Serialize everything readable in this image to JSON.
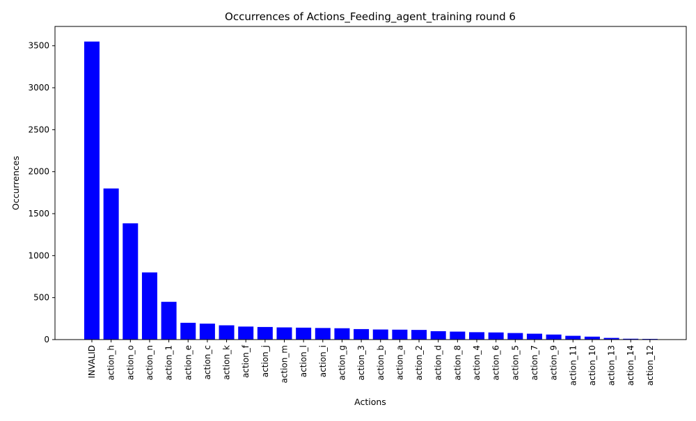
{
  "chart_data": {
    "type": "bar",
    "title": "Occurrences of Actions_Feeding_agent_training round 6",
    "xlabel": "Actions",
    "ylabel": "Occurrences",
    "ylim": [
      0,
      3730
    ],
    "yticks": [
      0,
      500,
      1000,
      1500,
      2000,
      2500,
      3000,
      3500
    ],
    "bar_color": "#0000ff",
    "grid": false,
    "categories": [
      "INVALID",
      "action_h",
      "action_o",
      "action_n",
      "action_1",
      "action_e",
      "action_c",
      "action_k",
      "action_f",
      "action_j",
      "action_m",
      "action_l",
      "action_i",
      "action_g",
      "action_3",
      "action_b",
      "action_a",
      "action_2",
      "action_d",
      "action_8",
      "action_4",
      "action_6",
      "action_5",
      "action_7",
      "action_9",
      "action_11",
      "action_10",
      "action_13",
      "action_14",
      "action_12"
    ],
    "values": [
      3550,
      1800,
      1385,
      800,
      450,
      200,
      190,
      170,
      155,
      150,
      145,
      142,
      138,
      135,
      125,
      120,
      118,
      115,
      100,
      95,
      88,
      85,
      78,
      70,
      60,
      45,
      35,
      20,
      10,
      8
    ]
  }
}
